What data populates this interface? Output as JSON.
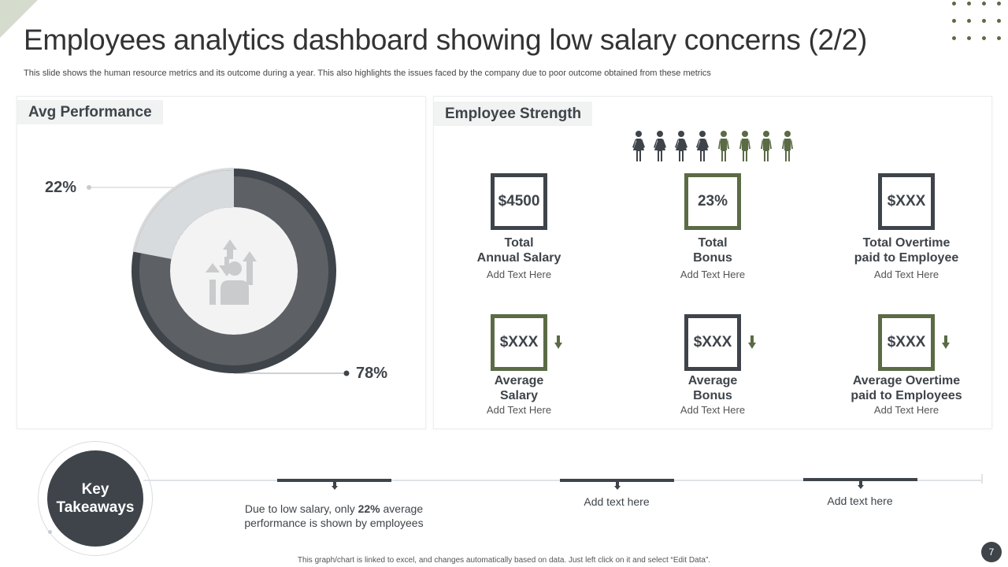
{
  "title": "Employees analytics dashboard showing low salary concerns (2/2)",
  "subtitle": "This slide shows the human resource metrics and its outcome during a year. This also highlights the issues faced by the company due to poor outcome obtained from these metrics",
  "colors": {
    "dark": "#3e444a",
    "mid": "#5d6166",
    "light": "#d8dbdd",
    "green": "#5a6b45"
  },
  "avg_performance": {
    "heading": "Avg Performance",
    "icon": "employee-growth-icon"
  },
  "chart_data": {
    "type": "pie",
    "style": "donut",
    "slices": [
      {
        "value": 78,
        "label": "78%",
        "color": "#5d6166"
      },
      {
        "value": 22,
        "label": "22%",
        "color": "#d8dbdd"
      }
    ]
  },
  "employee_strength": {
    "heading": "Employee Strength",
    "people_icons": {
      "female_count": 4,
      "male_count": 4,
      "female_color": "#3e444a",
      "male_color": "#5a6b45"
    },
    "metrics": [
      {
        "value": "$4500",
        "line1": "Total",
        "line2": "Annual Salary",
        "sub": "Add Text Here",
        "style": "dark",
        "arrow": false
      },
      {
        "value": "23%",
        "line1": "Total",
        "line2": "Bonus",
        "sub": "Add Text Here",
        "style": "green",
        "arrow": false
      },
      {
        "value": "$XXX",
        "line1": "Total Overtime",
        "line2": "paid to Employee",
        "sub": "Add Text Here",
        "style": "dark",
        "arrow": false
      },
      {
        "value": "$XXX",
        "line1": "Average",
        "line2": "Salary",
        "sub": "Add Text Here",
        "style": "green",
        "arrow": true
      },
      {
        "value": "$XXX",
        "line1": "Average",
        "line2": "Bonus",
        "sub": "Add Text Here",
        "style": "dark",
        "arrow": true
      },
      {
        "value": "$XXX",
        "line1": "Average Overtime",
        "line2": "paid to Employees",
        "sub": "Add Text Here",
        "style": "green",
        "arrow": true
      }
    ]
  },
  "key_takeaways": {
    "line1": "Key",
    "line2": "Takeaways",
    "items": [
      {
        "before": "Due to low salary, only ",
        "bold": "22%",
        "after": "  average performance is shown by employees"
      },
      {
        "text": "Add text here"
      },
      {
        "text": "Add text here"
      }
    ]
  },
  "footnote": "This graph/chart is linked to excel, and changes automatically based on data. Just left click on it and select “Edit Data”.",
  "page_number": "7"
}
